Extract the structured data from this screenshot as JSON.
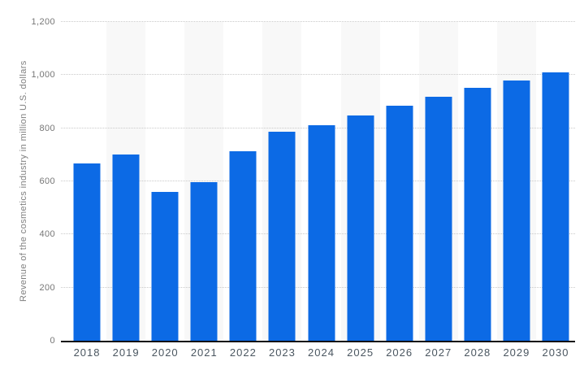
{
  "colors": {
    "background": "#ffffff",
    "bar": "#0c6ae5",
    "bar_stripe_bg": "#f8f8f8",
    "gridline": "#c9c9c9",
    "axis_line": "#111111",
    "tick_label": "#767676",
    "year_label": "#4a5660",
    "axis_title": "#7f7f7f"
  },
  "chart_data": {
    "type": "bar",
    "title": "",
    "xlabel": "",
    "ylabel": "Revenue of the cosmetics industry in million U.S. dollars",
    "categories": [
      "2018",
      "2019",
      "2020",
      "2021",
      "2022",
      "2023",
      "2024",
      "2025",
      "2026",
      "2027",
      "2028",
      "2029",
      "2030"
    ],
    "values": [
      668,
      700,
      560,
      598,
      714,
      786,
      812,
      848,
      884,
      919,
      952,
      981,
      1009
    ],
    "ylim": [
      0,
      1200
    ],
    "ytick_interval": 200,
    "yticks": [
      {
        "value": 0,
        "label": "0"
      },
      {
        "value": 200,
        "label": "200"
      },
      {
        "value": 400,
        "label": "400"
      },
      {
        "value": 600,
        "label": "600"
      },
      {
        "value": 800,
        "label": "800"
      },
      {
        "value": 1000,
        "label": "1,000"
      },
      {
        "value": 1200,
        "label": "1,200"
      }
    ],
    "grid": "horizontal-dotted",
    "legend": "none",
    "plot_background": "alternating vertical column stripes"
  }
}
